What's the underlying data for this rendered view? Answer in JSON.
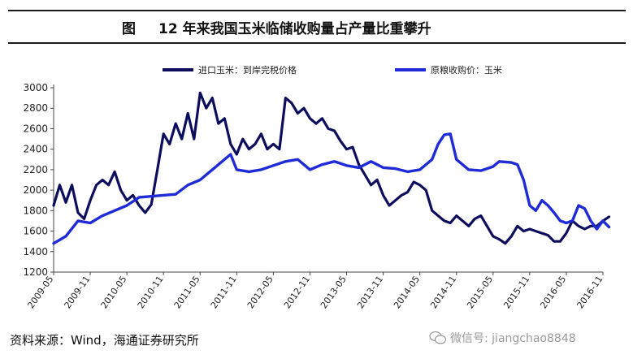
{
  "header": {
    "figure_prefix": "图",
    "title": "12 年来我国玉米临储收购量占产量比重攀升"
  },
  "footer": {
    "source": "资料来源：Wind，海通证券研究所",
    "watermark": "微信号: jiangchao8848",
    "watermark_icon": "wechat-icon"
  },
  "chart_data": {
    "type": "line",
    "ylim": [
      1200,
      3000
    ],
    "yticks": [
      1200,
      1400,
      1600,
      1800,
      2000,
      2200,
      2400,
      2600,
      2800,
      3000
    ],
    "xlim": [
      "2009-05",
      "2016-11"
    ],
    "xticks": [
      "2009-05",
      "2009-11",
      "2010-05",
      "2010-11",
      "2011-05",
      "2011-11",
      "2012-05",
      "2012-11",
      "2013-05",
      "2013-11",
      "2014-05",
      "2014-11",
      "2015-05",
      "2015-11",
      "2016-05",
      "2016-11"
    ],
    "legend_position": "top",
    "series": [
      {
        "name": "进口玉米：到岸完税价格",
        "color": "#0d0d5e",
        "points": [
          [
            "2009-05",
            1850
          ],
          [
            "2009-06",
            2050
          ],
          [
            "2009-07",
            1880
          ],
          [
            "2009-08",
            2050
          ],
          [
            "2009-09",
            1780
          ],
          [
            "2009-10",
            1720
          ],
          [
            "2009-11",
            1900
          ],
          [
            "2009-12",
            2050
          ],
          [
            "2010-01",
            2100
          ],
          [
            "2010-02",
            2050
          ],
          [
            "2010-03",
            2180
          ],
          [
            "2010-04",
            2000
          ],
          [
            "2010-05",
            1900
          ],
          [
            "2010-06",
            1950
          ],
          [
            "2010-07",
            1850
          ],
          [
            "2010-08",
            1780
          ],
          [
            "2010-09",
            1860
          ],
          [
            "2010-10",
            2200
          ],
          [
            "2010-11",
            2550
          ],
          [
            "2010-12",
            2450
          ],
          [
            "2011-01",
            2650
          ],
          [
            "2011-02",
            2500
          ],
          [
            "2011-03",
            2750
          ],
          [
            "2011-04",
            2500
          ],
          [
            "2011-05",
            2950
          ],
          [
            "2011-06",
            2800
          ],
          [
            "2011-07",
            2900
          ],
          [
            "2011-08",
            2650
          ],
          [
            "2011-09",
            2700
          ],
          [
            "2011-10",
            2450
          ],
          [
            "2011-11",
            2350
          ],
          [
            "2011-12",
            2500
          ],
          [
            "2012-01",
            2400
          ],
          [
            "2012-02",
            2450
          ],
          [
            "2012-03",
            2550
          ],
          [
            "2012-04",
            2400
          ],
          [
            "2012-05",
            2450
          ],
          [
            "2012-06",
            2400
          ],
          [
            "2012-07",
            2900
          ],
          [
            "2012-08",
            2850
          ],
          [
            "2012-09",
            2750
          ],
          [
            "2012-10",
            2800
          ],
          [
            "2012-11",
            2700
          ],
          [
            "2012-12",
            2650
          ],
          [
            "2013-01",
            2700
          ],
          [
            "2013-02",
            2600
          ],
          [
            "2013-03",
            2580
          ],
          [
            "2013-04",
            2480
          ],
          [
            "2013-05",
            2400
          ],
          [
            "2013-06",
            2420
          ],
          [
            "2013-07",
            2250
          ],
          [
            "2013-08",
            2150
          ],
          [
            "2013-09",
            2050
          ],
          [
            "2013-10",
            2100
          ],
          [
            "2013-11",
            1950
          ],
          [
            "2013-12",
            1850
          ],
          [
            "2014-01",
            1900
          ],
          [
            "2014-02",
            1950
          ],
          [
            "2014-03",
            1980
          ],
          [
            "2014-04",
            2080
          ],
          [
            "2014-05",
            2050
          ],
          [
            "2014-06",
            2000
          ],
          [
            "2014-07",
            1800
          ],
          [
            "2014-08",
            1750
          ],
          [
            "2014-09",
            1700
          ],
          [
            "2014-10",
            1680
          ],
          [
            "2014-11",
            1750
          ],
          [
            "2014-12",
            1700
          ],
          [
            "2015-01",
            1650
          ],
          [
            "2015-02",
            1720
          ],
          [
            "2015-03",
            1750
          ],
          [
            "2015-04",
            1650
          ],
          [
            "2015-05",
            1550
          ],
          [
            "2015-06",
            1520
          ],
          [
            "2015-07",
            1480
          ],
          [
            "2015-08",
            1550
          ],
          [
            "2015-09",
            1650
          ],
          [
            "2015-10",
            1600
          ],
          [
            "2015-11",
            1620
          ],
          [
            "2015-12",
            1600
          ],
          [
            "2016-01",
            1580
          ],
          [
            "2016-02",
            1560
          ],
          [
            "2016-03",
            1500
          ],
          [
            "2016-04",
            1500
          ],
          [
            "2016-05",
            1580
          ],
          [
            "2016-06",
            1700
          ],
          [
            "2016-07",
            1650
          ],
          [
            "2016-08",
            1620
          ],
          [
            "2016-09",
            1650
          ],
          [
            "2016-10",
            1650
          ],
          [
            "2016-11",
            1700
          ],
          [
            "2016-12",
            1740
          ]
        ]
      },
      {
        "name": "原粮收购价：玉米",
        "color": "#1f2bd6",
        "points": [
          [
            "2009-05",
            1480
          ],
          [
            "2009-07",
            1550
          ],
          [
            "2009-09",
            1700
          ],
          [
            "2009-11",
            1680
          ],
          [
            "2010-01",
            1750
          ],
          [
            "2010-03",
            1800
          ],
          [
            "2010-05",
            1850
          ],
          [
            "2010-07",
            1930
          ],
          [
            "2010-09",
            1940
          ],
          [
            "2010-11",
            1950
          ],
          [
            "2011-01",
            1960
          ],
          [
            "2011-03",
            2050
          ],
          [
            "2011-05",
            2100
          ],
          [
            "2011-07",
            2200
          ],
          [
            "2011-09",
            2300
          ],
          [
            "2011-10",
            2350
          ],
          [
            "2011-11",
            2200
          ],
          [
            "2012-01",
            2180
          ],
          [
            "2012-03",
            2200
          ],
          [
            "2012-05",
            2240
          ],
          [
            "2012-07",
            2280
          ],
          [
            "2012-09",
            2300
          ],
          [
            "2012-11",
            2200
          ],
          [
            "2013-01",
            2250
          ],
          [
            "2013-03",
            2280
          ],
          [
            "2013-05",
            2240
          ],
          [
            "2013-07",
            2220
          ],
          [
            "2013-09",
            2280
          ],
          [
            "2013-11",
            2220
          ],
          [
            "2014-01",
            2210
          ],
          [
            "2014-03",
            2180
          ],
          [
            "2014-05",
            2200
          ],
          [
            "2014-07",
            2300
          ],
          [
            "2014-08",
            2450
          ],
          [
            "2014-09",
            2540
          ],
          [
            "2014-10",
            2550
          ],
          [
            "2014-11",
            2300
          ],
          [
            "2014-12",
            2250
          ],
          [
            "2015-01",
            2200
          ],
          [
            "2015-03",
            2190
          ],
          [
            "2015-05",
            2230
          ],
          [
            "2015-06",
            2280
          ],
          [
            "2015-08",
            2270
          ],
          [
            "2015-09",
            2250
          ],
          [
            "2015-10",
            2100
          ],
          [
            "2015-11",
            1850
          ],
          [
            "2015-12",
            1800
          ],
          [
            "2016-01",
            1900
          ],
          [
            "2016-02",
            1850
          ],
          [
            "2016-03",
            1780
          ],
          [
            "2016-04",
            1700
          ],
          [
            "2016-05",
            1680
          ],
          [
            "2016-06",
            1700
          ],
          [
            "2016-07",
            1850
          ],
          [
            "2016-08",
            1820
          ],
          [
            "2016-09",
            1700
          ],
          [
            "2016-10",
            1620
          ],
          [
            "2016-11",
            1700
          ],
          [
            "2016-12",
            1640
          ]
        ]
      }
    ]
  }
}
